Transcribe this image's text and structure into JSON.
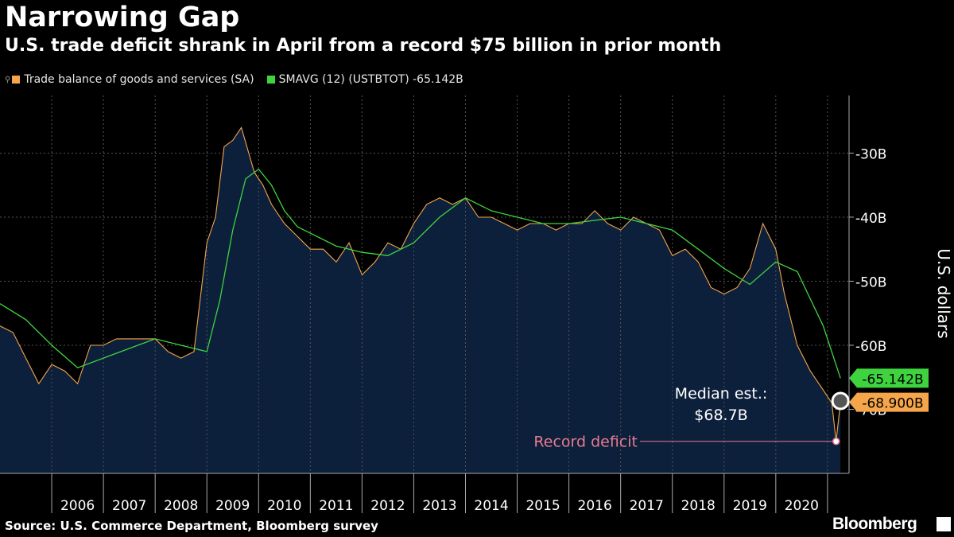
{
  "title": "Narrowing Gap",
  "subtitle": "U.S. trade deficit shrank in April from a record $75 billion in prior month",
  "source": "Source: U.S. Commerce Department, Bloomberg survey",
  "brand": "Bloomberg",
  "colors": {
    "background": "#000000",
    "area_fill": "#0c1f3b",
    "trade_line": "#f5a54a",
    "sma_line": "#3fd43f",
    "gridline": "#5a5a5a",
    "annotation": "#e87b8f"
  },
  "chart_data": {
    "type": "area",
    "ylabel": "U.S. dollars",
    "ylim": [
      -80,
      -21
    ],
    "xlim": [
      "2005-01",
      "2021-06"
    ],
    "y_ticks": [
      {
        "value": -30,
        "label": "-30B"
      },
      {
        "value": -40,
        "label": "-40B"
      },
      {
        "value": -50,
        "label": "-50B"
      },
      {
        "value": -60,
        "label": "-60B"
      },
      {
        "value": -70,
        "label": "-70B"
      }
    ],
    "x_tick_labels": [
      "2006",
      "2007",
      "2008",
      "2009",
      "2010",
      "2011",
      "2012",
      "2013",
      "2014",
      "2015",
      "2016",
      "2017",
      "2018",
      "2019",
      "2020"
    ],
    "grid": true,
    "legend_position": "top-left",
    "series": [
      {
        "name": "Trade balance of goods and services (SA)",
        "last_value_label": "-68.900B",
        "points": [
          [
            "2005-01",
            -57
          ],
          [
            "2005-04",
            -58
          ],
          [
            "2005-07",
            -62
          ],
          [
            "2005-10",
            -66
          ],
          [
            "2006-01",
            -63
          ],
          [
            "2006-04",
            -64
          ],
          [
            "2006-07",
            -66
          ],
          [
            "2006-10",
            -60
          ],
          [
            "2007-01",
            -60
          ],
          [
            "2007-04",
            -59
          ],
          [
            "2007-07",
            -59
          ],
          [
            "2007-10",
            -59
          ],
          [
            "2008-01",
            -59
          ],
          [
            "2008-04",
            -61
          ],
          [
            "2008-07",
            -62
          ],
          [
            "2008-10",
            -61
          ],
          [
            "2009-01",
            -44
          ],
          [
            "2009-03",
            -40
          ],
          [
            "2009-05",
            -29
          ],
          [
            "2009-07",
            -28
          ],
          [
            "2009-09",
            -26
          ],
          [
            "2009-12",
            -33
          ],
          [
            "2010-02",
            -35
          ],
          [
            "2010-04",
            -38
          ],
          [
            "2010-07",
            -41
          ],
          [
            "2010-10",
            -43
          ],
          [
            "2011-01",
            -45
          ],
          [
            "2011-04",
            -45
          ],
          [
            "2011-07",
            -47
          ],
          [
            "2011-10",
            -44
          ],
          [
            "2012-01",
            -49
          ],
          [
            "2012-04",
            -47
          ],
          [
            "2012-07",
            -44
          ],
          [
            "2012-10",
            -45
          ],
          [
            "2013-01",
            -41
          ],
          [
            "2013-04",
            -38
          ],
          [
            "2013-07",
            -37
          ],
          [
            "2013-10",
            -38
          ],
          [
            "2014-01",
            -37
          ],
          [
            "2014-04",
            -40
          ],
          [
            "2014-07",
            -40
          ],
          [
            "2014-10",
            -41
          ],
          [
            "2015-01",
            -42
          ],
          [
            "2015-04",
            -41
          ],
          [
            "2015-07",
            -41
          ],
          [
            "2015-10",
            -42
          ],
          [
            "2016-01",
            -41
          ],
          [
            "2016-04",
            -41
          ],
          [
            "2016-07",
            -39
          ],
          [
            "2016-10",
            -41
          ],
          [
            "2017-01",
            -42
          ],
          [
            "2017-04",
            -40
          ],
          [
            "2017-07",
            -41
          ],
          [
            "2017-10",
            -42
          ],
          [
            "2018-01",
            -46
          ],
          [
            "2018-04",
            -45
          ],
          [
            "2018-07",
            -47
          ],
          [
            "2018-10",
            -51
          ],
          [
            "2019-01",
            -52
          ],
          [
            "2019-04",
            -51
          ],
          [
            "2019-07",
            -48
          ],
          [
            "2019-10",
            -41
          ],
          [
            "2020-01",
            -45
          ],
          [
            "2020-03",
            -52
          ],
          [
            "2020-06",
            -60
          ],
          [
            "2020-09",
            -64
          ],
          [
            "2020-12",
            -67
          ],
          [
            "2021-02",
            -69
          ],
          [
            "2021-03",
            -75
          ],
          [
            "2021-04",
            -68.9
          ]
        ]
      },
      {
        "name": "SMAVG (12) (USTBTOT) -65.142B",
        "last_value_label": "-65.142B",
        "points": [
          [
            "2005-01",
            -53.5
          ],
          [
            "2005-07",
            -56
          ],
          [
            "2006-01",
            -60
          ],
          [
            "2006-07",
            -63.5
          ],
          [
            "2007-01",
            -62
          ],
          [
            "2007-07",
            -60.5
          ],
          [
            "2008-01",
            -59
          ],
          [
            "2008-07",
            -60
          ],
          [
            "2009-01",
            -61
          ],
          [
            "2009-04",
            -53
          ],
          [
            "2009-07",
            -42
          ],
          [
            "2009-10",
            -34
          ],
          [
            "2010-01",
            -32.5
          ],
          [
            "2010-04",
            -35
          ],
          [
            "2010-07",
            -39
          ],
          [
            "2010-10",
            -41.5
          ],
          [
            "2011-01",
            -42.5
          ],
          [
            "2011-07",
            -44.5
          ],
          [
            "2012-01",
            -45.5
          ],
          [
            "2012-07",
            -46
          ],
          [
            "2013-01",
            -44
          ],
          [
            "2013-07",
            -40
          ],
          [
            "2014-01",
            -37
          ],
          [
            "2014-07",
            -39
          ],
          [
            "2015-01",
            -40
          ],
          [
            "2015-07",
            -41
          ],
          [
            "2016-01",
            -41
          ],
          [
            "2016-07",
            -40.5
          ],
          [
            "2017-01",
            -40
          ],
          [
            "2017-07",
            -41
          ],
          [
            "2018-01",
            -42
          ],
          [
            "2018-07",
            -45
          ],
          [
            "2019-01",
            -48
          ],
          [
            "2019-07",
            -50.5
          ],
          [
            "2020-01",
            -47
          ],
          [
            "2020-06",
            -48.5
          ],
          [
            "2020-12",
            -57
          ],
          [
            "2021-04",
            -65.142
          ]
        ]
      }
    ],
    "annotations": [
      {
        "text": "Median est.:",
        "text2": "$68.7B",
        "date": "2021-04",
        "value": -68.7
      },
      {
        "text": "Record deficit",
        "date": "2021-03",
        "value": -75
      }
    ]
  }
}
